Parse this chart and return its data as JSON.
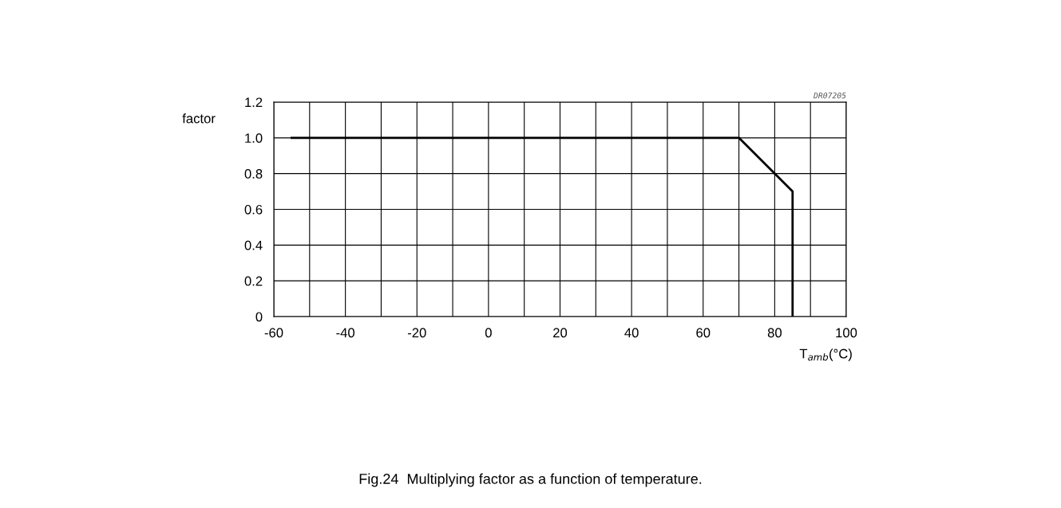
{
  "chart_data": {
    "type": "line",
    "title": "Fig.24  Multiplying factor as a function of temperature.",
    "xlabel": "T$_{amb}$(°C)",
    "ylabel": "factor",
    "annotations": [
      "DR07205"
    ],
    "x": [
      -55,
      70,
      85,
      85
    ],
    "series": [
      {
        "color": "#000000",
        "values": [
          1.0,
          1.0,
          0.7,
          0
        ]
      }
    ],
    "xlim": [
      -60,
      100
    ],
    "xticks": [
      -60,
      {
        "value": -50,
        "label": null
      },
      -40,
      {
        "value": -30,
        "label": null
      },
      -20,
      {
        "value": -10,
        "label": null
      },
      0,
      {
        "value": 10,
        "label": null
      },
      20,
      {
        "value": 30,
        "label": null
      },
      40,
      {
        "value": 50,
        "label": null
      },
      60,
      {
        "value": 70,
        "label": null
      },
      80,
      {
        "value": 90,
        "label": null
      },
      100
    ],
    "ylim": [
      0,
      1.2
    ],
    "yticks": [
      {
        "value": 0,
        "label": "0"
      },
      0.2,
      0.4,
      0.6,
      0.8,
      {
        "value": 1.0,
        "label": "1.0"
      },
      1.2
    ],
    "grid": true,
    "marker": "none",
    "line_style": "solid"
  }
}
